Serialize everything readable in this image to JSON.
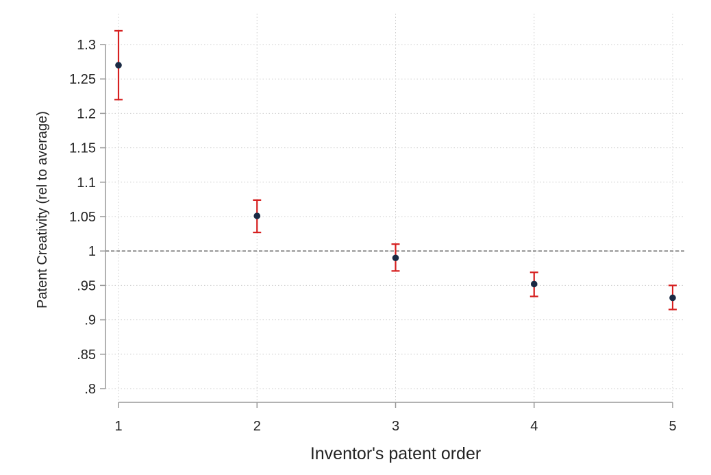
{
  "chart_data": {
    "type": "scatter",
    "title": "",
    "xlabel": "Inventor's patent order",
    "ylabel": "Patent Creativity (rel to average)",
    "xlim": [
      1,
      5
    ],
    "ylim": [
      0.8,
      1.3
    ],
    "x_ticks": [
      "1",
      "2",
      "3",
      "4",
      "5"
    ],
    "y_ticks": [
      {
        "value": 0.8,
        "label": ".8"
      },
      {
        "value": 0.85,
        "label": ".85"
      },
      {
        "value": 0.9,
        "label": ".9"
      },
      {
        "value": 0.95,
        "label": ".95"
      },
      {
        "value": 1.0,
        "label": "1"
      },
      {
        "value": 1.05,
        "label": "1.05"
      },
      {
        "value": 1.1,
        "label": "1.1"
      },
      {
        "value": 1.15,
        "label": "1.15"
      },
      {
        "value": 1.2,
        "label": "1.2"
      },
      {
        "value": 1.25,
        "label": "1.25"
      },
      {
        "value": 1.3,
        "label": "1.3"
      }
    ],
    "reference_line_y": 1.0,
    "grid": true,
    "legend": "none",
    "points": [
      {
        "x": 1,
        "y": 1.27,
        "ci_low": 1.22,
        "ci_high": 1.32
      },
      {
        "x": 2,
        "y": 1.051,
        "ci_low": 1.027,
        "ci_high": 1.074
      },
      {
        "x": 3,
        "y": 0.99,
        "ci_low": 0.971,
        "ci_high": 1.01
      },
      {
        "x": 4,
        "y": 0.952,
        "ci_low": 0.934,
        "ci_high": 0.969
      },
      {
        "x": 5,
        "y": 0.932,
        "ci_low": 0.915,
        "ci_high": 0.95
      }
    ],
    "colors": {
      "point": "#1a2a44",
      "error_bar": "#d62020",
      "grid": "#cccccc",
      "reference_line": "#777777",
      "axis": "#999999"
    }
  }
}
